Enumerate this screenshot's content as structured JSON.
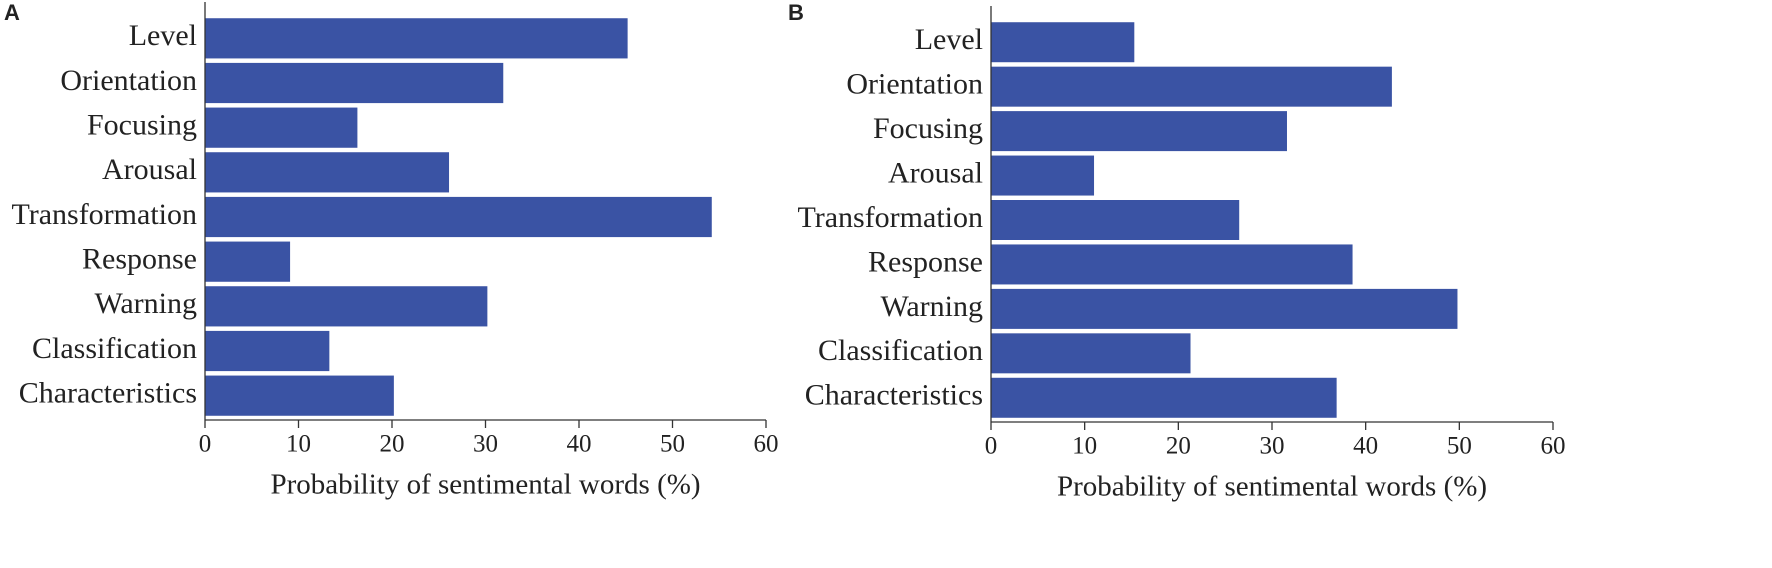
{
  "chart_data": [
    {
      "type": "bar",
      "orientation": "horizontal",
      "panel_label": "A",
      "categories": [
        "Level",
        "Orientation",
        "Focusing",
        "Arousal",
        "Transformation",
        "Response",
        "Warning",
        "Classification",
        "Characteristics"
      ],
      "values": [
        45.2,
        31.9,
        16.3,
        26.1,
        54.2,
        9.1,
        30.2,
        13.3,
        20.2
      ],
      "color": "#3a53a4",
      "xlim": [
        0,
        60
      ],
      "xticks": [
        0,
        10,
        20,
        30,
        40,
        50,
        60
      ],
      "x_label": "Probability of sentimental words (%)",
      "grid": false
    },
    {
      "type": "bar",
      "orientation": "horizontal",
      "panel_label": "B",
      "categories": [
        "Level",
        "Orientation",
        "Focusing",
        "Arousal",
        "Transformation",
        "Response",
        "Warning",
        "Classification",
        "Characteristics"
      ],
      "values": [
        15.3,
        42.8,
        31.6,
        11.0,
        26.5,
        38.6,
        49.8,
        21.3,
        36.9
      ],
      "color": "#3a53a4",
      "xlim": [
        0,
        60
      ],
      "xticks": [
        0,
        10,
        20,
        30,
        40,
        50,
        60
      ],
      "x_label": "Probability of sentimental words (%)",
      "grid": false
    }
  ]
}
